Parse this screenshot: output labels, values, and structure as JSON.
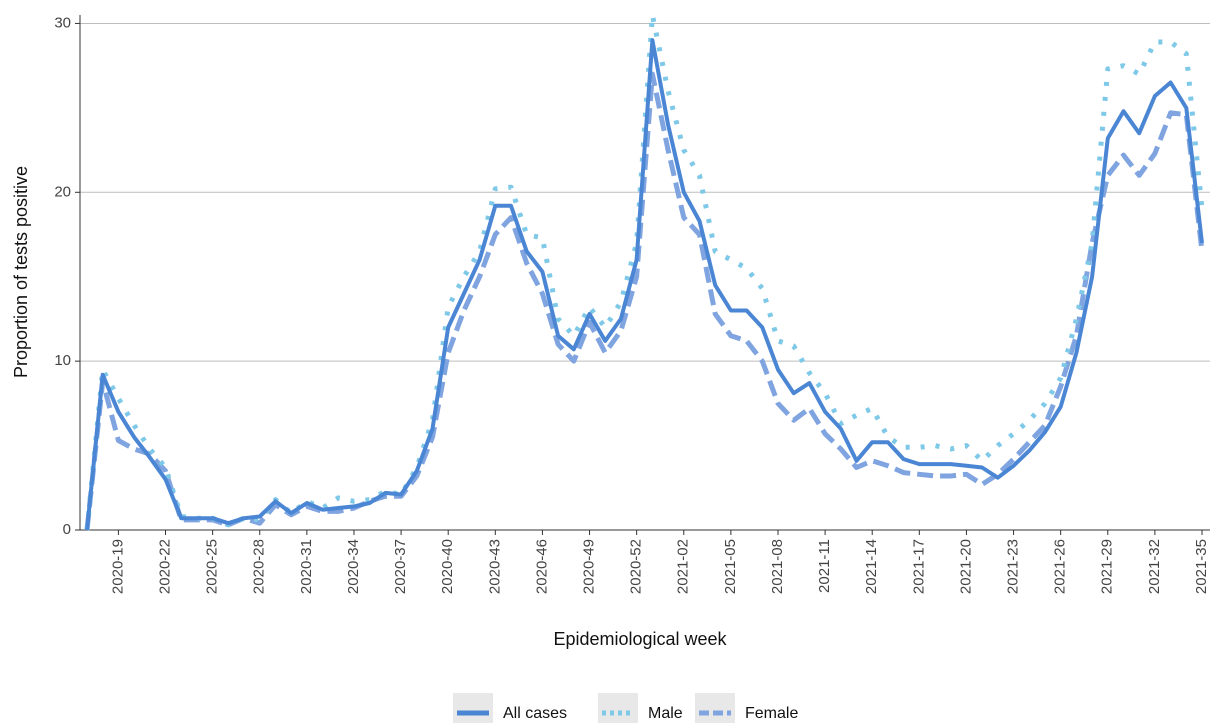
{
  "chart_data": {
    "type": "line",
    "xlabel": "Epidemiological week",
    "ylabel": "Proportion of tests positive",
    "categories": [
      null,
      null,
      "2020-19",
      null,
      null,
      "2020-22",
      null,
      null,
      "2020-25",
      null,
      null,
      "2020-28",
      null,
      null,
      "2020-31",
      null,
      null,
      "2020-34",
      null,
      null,
      "2020-37",
      null,
      null,
      "2020-40",
      null,
      null,
      "2020-43",
      null,
      null,
      "2020-46",
      null,
      null,
      "2020-49",
      null,
      null,
      "2020-52",
      null,
      null,
      "2021-02",
      null,
      null,
      "2021-05",
      null,
      null,
      "2021-08",
      null,
      null,
      "2021-11",
      null,
      null,
      "2021-14",
      null,
      null,
      "2021-17",
      null,
      null,
      "2021-20",
      null,
      null,
      "2021-23",
      null,
      null,
      "2021-26",
      null,
      null,
      "2021-29",
      null,
      null,
      "2021-32",
      null,
      null,
      "2021-35"
    ],
    "series": [
      {
        "name": "All cases",
        "color": "#4a86d4",
        "linestyle": "solid",
        "values": [
          0,
          9.2,
          7.0,
          5.5,
          4.3,
          3.0,
          0.7,
          0.7,
          0.7,
          0.4,
          0.7,
          0.8,
          1.7,
          1.0,
          1.6,
          1.2,
          1.3,
          1.4,
          1.6,
          2.2,
          2.1,
          3.5,
          6,
          12,
          14,
          16,
          19.2,
          19.2,
          16.5,
          15.3,
          11.5,
          10.7,
          12.8,
          11.2,
          12.5,
          16,
          29,
          24,
          20,
          18.3,
          14.5,
          13,
          13,
          12,
          9.5,
          8.1,
          8.7,
          7,
          6,
          4.1,
          5.2,
          5.2,
          4.2,
          3.9,
          3.9,
          3.9,
          3.8,
          3.7,
          3.1,
          3.8,
          4.7,
          5.8,
          7.3,
          10.5,
          15,
          23.2,
          24.8,
          23.5,
          25.7,
          26.5,
          25,
          17
        ]
      },
      {
        "name": "Male",
        "color": "#7ec8e8",
        "linestyle": "dotted",
        "values": [
          0,
          9.5,
          7.8,
          6.2,
          4.8,
          3.7,
          0.8,
          0.7,
          0.7,
          0.3,
          0.7,
          0.6,
          1.8,
          1.0,
          1.7,
          1.3,
          1.9,
          1.7,
          1.8,
          2.3,
          2.1,
          3.7,
          6.5,
          13.2,
          15,
          16.5,
          20.2,
          20.3,
          17.5,
          17.3,
          12.5,
          11.5,
          13.2,
          12,
          13.5,
          17,
          30.5,
          26,
          22.5,
          21,
          16.5,
          16,
          15.5,
          14.3,
          11.2,
          10.9,
          9.3,
          8.1,
          6.3,
          6.8,
          7.2,
          5.5,
          4.9,
          4.9,
          5.0,
          4.8,
          5.0,
          4.1,
          5.0,
          5.7,
          6.5,
          7.5,
          9,
          12.5,
          17,
          27.3,
          27.5,
          27,
          28.9,
          28.9,
          28.2,
          19
        ]
      },
      {
        "name": "Female",
        "color": "#7fa4e0",
        "linestyle": "dashed",
        "values": [
          0,
          8.8,
          5.3,
          4.8,
          4.5,
          3.5,
          0.6,
          0.6,
          0.6,
          0.3,
          0.7,
          0.4,
          1.5,
          0.9,
          1.4,
          1.1,
          1.1,
          1.3,
          1.7,
          2.0,
          2.0,
          3.2,
          5.5,
          10.5,
          13,
          15,
          17.5,
          18.5,
          15.8,
          14,
          11,
          10,
          12.3,
          10.5,
          11.8,
          15,
          27,
          22.5,
          18.5,
          17.5,
          12.8,
          11.5,
          11.2,
          10,
          7.5,
          6.5,
          7.2,
          5.7,
          4.8,
          3.7,
          4.1,
          3.8,
          3.4,
          3.3,
          3.2,
          3.2,
          3.3,
          2.7,
          3.3,
          4.2,
          5.2,
          6.2,
          8.5,
          11.5,
          17,
          21,
          22.2,
          21,
          22.3,
          24.7,
          24.6,
          16.5
        ]
      }
    ],
    "ylim": [
      0,
      30.5
    ],
    "yticks": [
      0,
      10,
      20,
      30
    ],
    "grid": true,
    "legend": "bottom"
  }
}
